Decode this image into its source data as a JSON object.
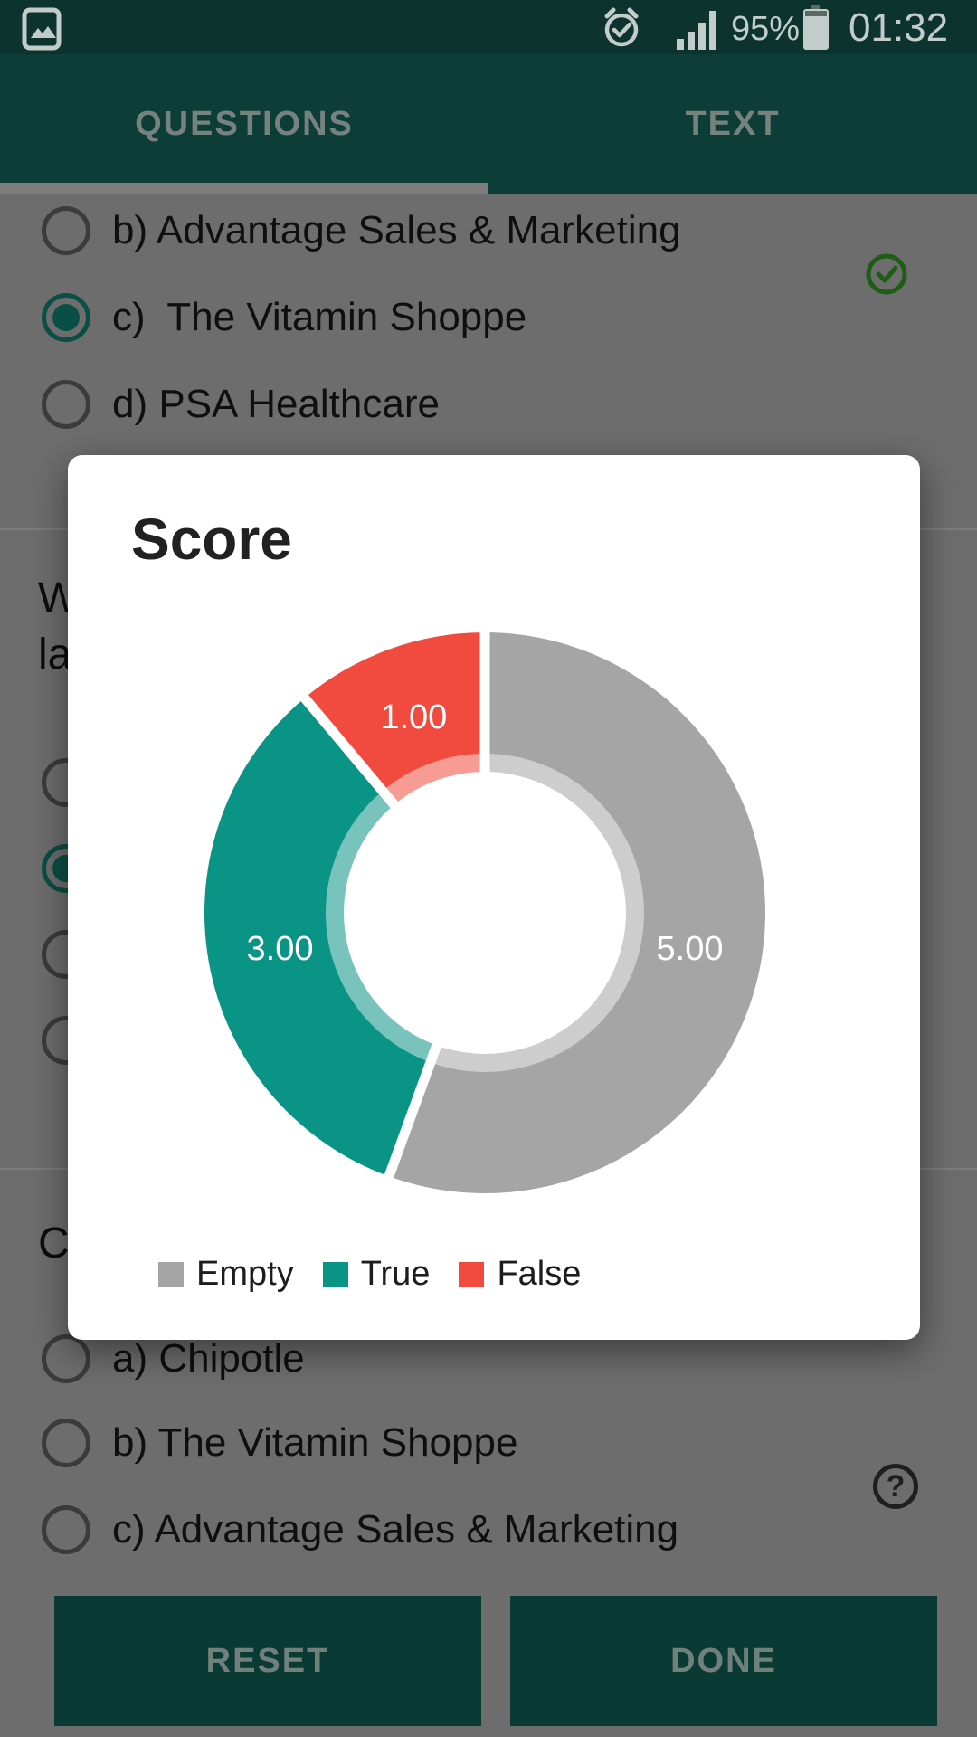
{
  "status_bar": {
    "time": "01:32",
    "battery_percent": "95%",
    "icons": [
      "gallery-icon",
      "alarm-icon",
      "signal-icon",
      "battery-icon"
    ]
  },
  "tabs": {
    "items": [
      {
        "label": "QUESTIONS",
        "selected": true
      },
      {
        "label": "TEXT",
        "selected": false
      }
    ]
  },
  "top_question": {
    "options": [
      {
        "label": "b) Advantage Sales & Marketing",
        "selected": false
      },
      {
        "label": "c)  The Vitamin Shoppe",
        "selected": true
      },
      {
        "label": "d) PSA Healthcare",
        "selected": false
      }
    ],
    "correct_check_shown": true
  },
  "middle_question": {
    "visible_lines": [
      "W",
      "la"
    ],
    "radio_states": [
      false,
      true,
      false,
      false
    ]
  },
  "bottom_question": {
    "visible_line": "C",
    "options": [
      {
        "label": "a) Chipotle",
        "selected": false
      },
      {
        "label": "b) The Vitamin Shoppe",
        "selected": false
      },
      {
        "label": "c) Advantage Sales & Marketing",
        "selected": false
      }
    ]
  },
  "score_dialog": {
    "title": "Score",
    "chart_data": {
      "type": "pie",
      "variant": "donut",
      "title": "Score",
      "categories": [
        "Empty",
        "True",
        "False"
      ],
      "values": [
        5,
        3,
        1
      ],
      "value_labels": [
        "5.00",
        "3.00",
        "1.00"
      ],
      "colors": [
        "#a5a5a5",
        "#0a9486",
        "#f14a3f"
      ],
      "total": 9,
      "start_angle_deg": 0,
      "clockwise": true,
      "legend_position": "bottom"
    },
    "legend": [
      {
        "label": "Empty",
        "color": "#a5a5a5"
      },
      {
        "label": "True",
        "color": "#0a9486"
      },
      {
        "label": "False",
        "color": "#f14a3f"
      }
    ]
  },
  "footer_buttons": {
    "reset": "RESET",
    "done": "DONE"
  },
  "colors": {
    "status_bar": "#0c332e",
    "app_bar": "#0c3d36",
    "scrim_background": "#6d6d6d",
    "button": "#0a3a34",
    "accent_teal": "#0a9486",
    "slice_gray": "#a5a5a5",
    "slice_red": "#f14a3f",
    "check_green": "#1e5e14"
  }
}
